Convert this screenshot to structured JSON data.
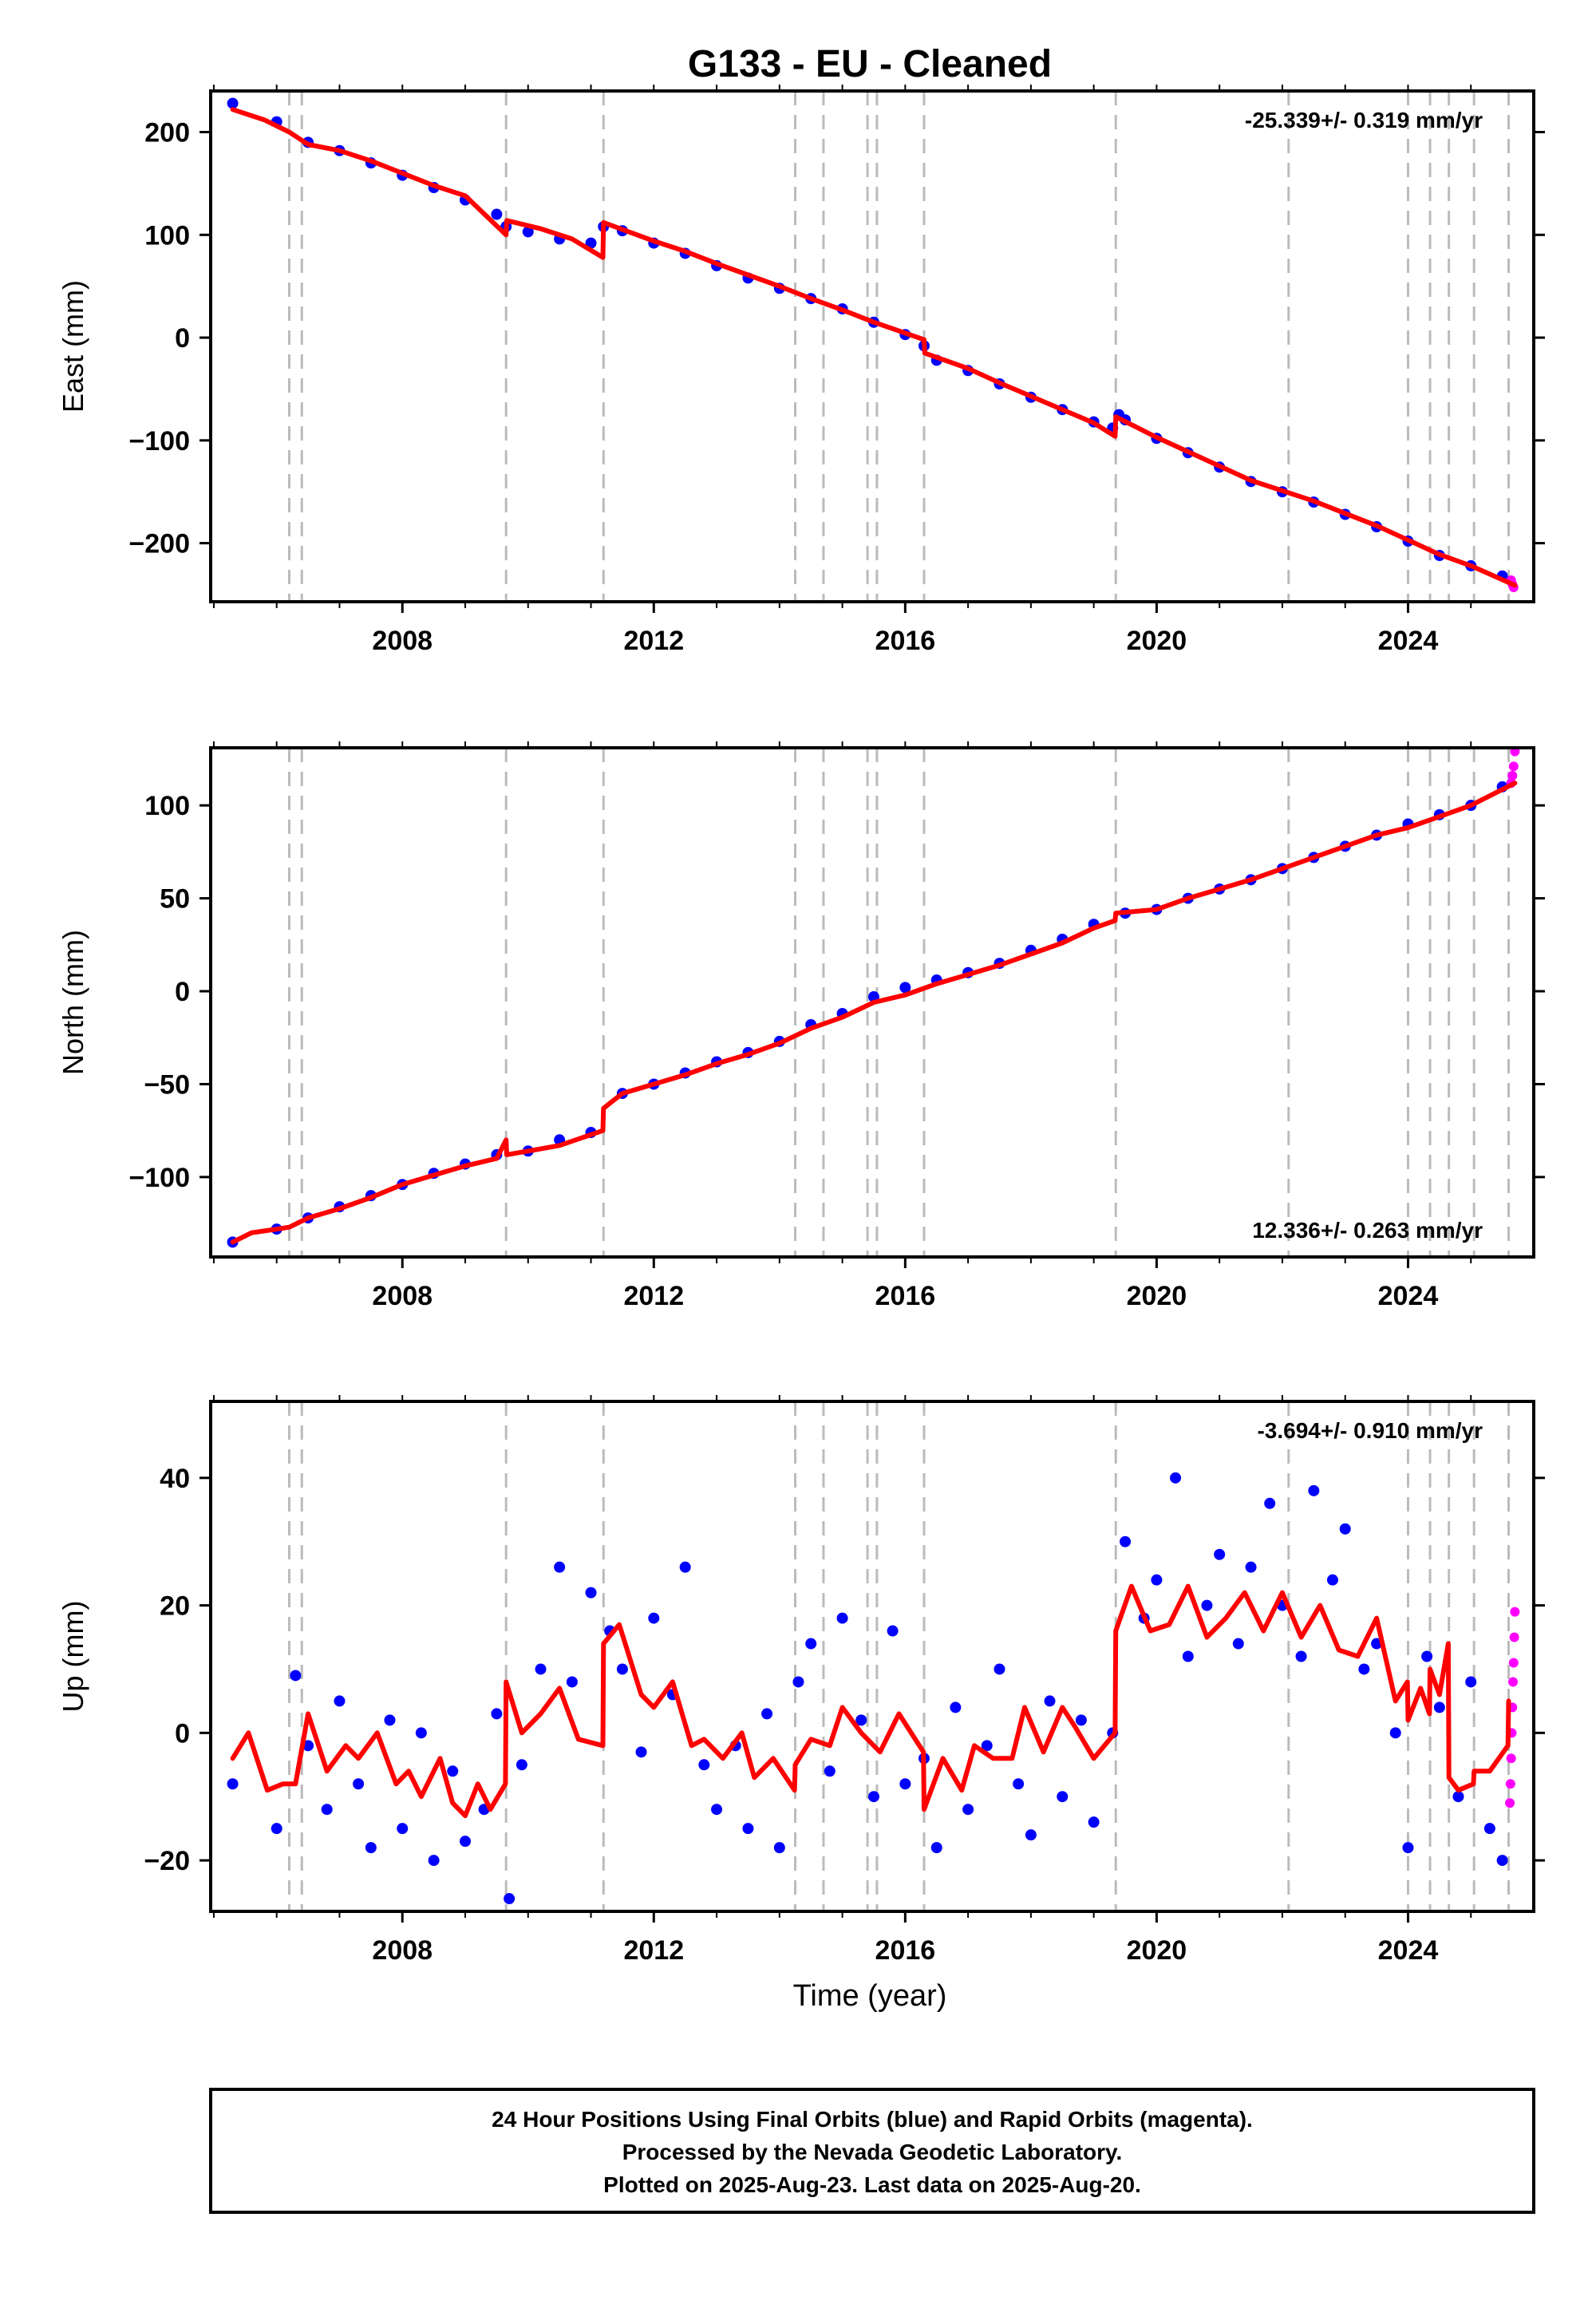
{
  "title": "G133  - EU - Cleaned",
  "xlabel": "Time (year)",
  "x_tick_labels": [
    "2008",
    "2012",
    "2016",
    "2020",
    "2024"
  ],
  "footer": {
    "line1": "24 Hour Positions Using Final Orbits (blue) and Rapid Orbits (magenta).",
    "line2": "Processed by the Nevada Geodetic Laboratory.",
    "line3": "Plotted on 2025-Aug-23. Last data on 2025-Aug-20."
  },
  "colors": {
    "final_orbits": "#0000ff",
    "rapid_orbits": "#ff00ff",
    "model": "#ff0000",
    "event_lines": "#bbbbbb"
  },
  "chart_data": [
    {
      "type": "scatter",
      "panel": "east",
      "ylabel": "East (mm)",
      "rate_label": "-25.339+/- 0.319 mm/yr",
      "rate_position": "top-right",
      "xlim": [
        2004.95,
        2026.0
      ],
      "ylim": [
        -257,
        240
      ],
      "y_ticks": [
        200,
        100,
        0,
        -100,
        -200
      ],
      "y_tick_labels": [
        "200",
        "100",
        "0",
        "−100",
        "−200"
      ],
      "grid": false,
      "event_lines_x": [
        2006.2,
        2006.4,
        2009.65,
        2011.2,
        2014.25,
        2014.7,
        2015.4,
        2015.55,
        2016.3,
        2019.35,
        2022.1,
        2024.0,
        2024.35,
        2024.65,
        2025.05,
        2025.6
      ],
      "series": [
        {
          "name": "Final Orbits",
          "color": "#0000ff",
          "kind": "points",
          "x": [
            2005.3,
            2006.0,
            2006.5,
            2007.0,
            2007.5,
            2008.0,
            2008.5,
            2009.0,
            2009.5,
            2009.65,
            2010.0,
            2010.5,
            2011.0,
            2011.2,
            2011.5,
            2012.0,
            2012.5,
            2013.0,
            2013.5,
            2014.0,
            2014.5,
            2015.0,
            2015.5,
            2016.0,
            2016.3,
            2016.5,
            2017.0,
            2017.5,
            2018.0,
            2018.5,
            2019.0,
            2019.3,
            2019.4,
            2019.5,
            2020.0,
            2020.5,
            2021.0,
            2021.5,
            2022.0,
            2022.5,
            2023.0,
            2023.5,
            2024.0,
            2024.5,
            2025.0,
            2025.5
          ],
          "y": [
            228,
            210,
            190,
            182,
            170,
            158,
            146,
            134,
            120,
            108,
            103,
            96,
            92,
            108,
            104,
            92,
            82,
            70,
            58,
            48,
            38,
            28,
            15,
            3,
            -8,
            -22,
            -32,
            -45,
            -58,
            -70,
            -82,
            -88,
            -75,
            -80,
            -98,
            -112,
            -126,
            -140,
            -150,
            -160,
            -172,
            -184,
            -198,
            -212,
            -222,
            -232
          ]
        },
        {
          "name": "Rapid Orbits",
          "color": "#ff00ff",
          "kind": "points",
          "x": [
            2025.64,
            2025.66,
            2025.68
          ],
          "y": [
            -236,
            -240,
            -243
          ]
        },
        {
          "name": "Model",
          "color": "#ff0000",
          "kind": "line",
          "x": [
            2005.3,
            2005.8,
            2006.2,
            2006.5,
            2007.0,
            2007.5,
            2008.0,
            2008.5,
            2009.0,
            2009.65,
            2009.66,
            2010.2,
            2010.7,
            2011.19,
            2011.2,
            2011.6,
            2012.0,
            2012.5,
            2013.0,
            2013.5,
            2014.0,
            2014.5,
            2015.0,
            2015.5,
            2016.3,
            2016.31,
            2017.0,
            2017.5,
            2018.0,
            2018.5,
            2019.0,
            2019.34,
            2019.35,
            2020.0,
            2020.5,
            2021.0,
            2021.5,
            2022.0,
            2022.5,
            2023.0,
            2023.5,
            2024.0,
            2024.5,
            2025.0,
            2025.7
          ],
          "y": [
            222,
            212,
            200,
            188,
            182,
            172,
            160,
            148,
            138,
            100,
            114,
            106,
            96,
            78,
            112,
            103,
            94,
            84,
            72,
            61,
            50,
            38,
            27,
            15,
            -2,
            -15,
            -30,
            -44,
            -57,
            -70,
            -83,
            -96,
            -77,
            -97,
            -111,
            -125,
            -139,
            -149,
            -159,
            -171,
            -183,
            -197,
            -211,
            -222,
            -241
          ]
        }
      ]
    },
    {
      "type": "scatter",
      "panel": "north",
      "ylabel": "North (mm)",
      "rate_label": "12.336+/- 0.263 mm/yr",
      "rate_position": "bottom-right",
      "xlim": [
        2004.95,
        2026.0
      ],
      "ylim": [
        -143,
        131
      ],
      "y_ticks": [
        100,
        50,
        0,
        -50,
        -100
      ],
      "y_tick_labels": [
        "100",
        "50",
        "0",
        "−50",
        "−100"
      ],
      "grid": false,
      "event_lines_x": [
        2006.2,
        2006.4,
        2009.65,
        2011.2,
        2014.25,
        2014.7,
        2015.4,
        2015.55,
        2016.3,
        2019.35,
        2022.1,
        2024.0,
        2024.35,
        2024.65,
        2025.05,
        2025.6
      ],
      "series": [
        {
          "name": "Final Orbits",
          "color": "#0000ff",
          "kind": "points",
          "x": [
            2005.3,
            2006.0,
            2006.5,
            2007.0,
            2007.5,
            2008.0,
            2008.5,
            2009.0,
            2009.5,
            2010.0,
            2010.5,
            2011.0,
            2011.5,
            2012.0,
            2012.5,
            2013.0,
            2013.5,
            2014.0,
            2014.5,
            2015.0,
            2015.5,
            2016.0,
            2016.5,
            2017.0,
            2017.5,
            2018.0,
            2018.5,
            2019.0,
            2019.5,
            2020.0,
            2020.5,
            2021.0,
            2021.5,
            2022.0,
            2022.5,
            2023.0,
            2023.5,
            2024.0,
            2024.5,
            2025.0,
            2025.5
          ],
          "y": [
            -135,
            -128,
            -122,
            -116,
            -110,
            -104,
            -98,
            -93,
            -88,
            -86,
            -80,
            -76,
            -55,
            -50,
            -44,
            -38,
            -33,
            -27,
            -18,
            -12,
            -3,
            2,
            6,
            10,
            15,
            22,
            28,
            36,
            42,
            44,
            50,
            55,
            60,
            66,
            72,
            78,
            84,
            90,
            95,
            100,
            110
          ]
        },
        {
          "name": "Rapid Orbits",
          "color": "#ff00ff",
          "kind": "points",
          "x": [
            2025.64,
            2025.66,
            2025.68,
            2025.7
          ],
          "y": [
            112,
            116,
            121,
            129
          ]
        },
        {
          "name": "Model",
          "color": "#ff0000",
          "kind": "line",
          "x": [
            2005.3,
            2005.6,
            2006.0,
            2006.2,
            2006.5,
            2007.0,
            2007.5,
            2008.0,
            2008.5,
            2009.0,
            2009.5,
            2009.65,
            2009.66,
            2010.0,
            2010.5,
            2011.19,
            2011.2,
            2011.5,
            2012.0,
            2012.5,
            2013.0,
            2013.5,
            2014.0,
            2014.5,
            2015.0,
            2015.5,
            2016.0,
            2016.5,
            2017.0,
            2017.5,
            2018.0,
            2018.5,
            2019.0,
            2019.34,
            2019.35,
            2020.0,
            2020.5,
            2021.0,
            2021.5,
            2022.0,
            2022.5,
            2023.0,
            2023.5,
            2024.0,
            2024.5,
            2025.0,
            2025.7
          ],
          "y": [
            -135,
            -130,
            -128,
            -127,
            -122,
            -117,
            -111,
            -104,
            -99,
            -94,
            -90,
            -80,
            -88,
            -86,
            -83,
            -75,
            -63,
            -55,
            -50,
            -45,
            -39,
            -34,
            -28,
            -20,
            -14,
            -6,
            -2,
            4,
            9,
            14,
            20,
            26,
            34,
            38,
            42,
            44,
            50,
            55,
            60,
            66,
            72,
            78,
            84,
            88,
            94,
            100,
            112
          ]
        }
      ]
    },
    {
      "type": "scatter",
      "panel": "up",
      "ylabel": "Up (mm)",
      "rate_label": "-3.694+/- 0.910 mm/yr",
      "rate_position": "top-right",
      "xlim": [
        2004.95,
        2026.0
      ],
      "ylim": [
        -28,
        52
      ],
      "y_ticks": [
        40,
        20,
        0,
        -20
      ],
      "y_tick_labels": [
        "40",
        "20",
        "0",
        "−20"
      ],
      "grid": false,
      "event_lines_x": [
        2006.2,
        2006.4,
        2009.65,
        2011.2,
        2014.25,
        2014.7,
        2015.4,
        2015.55,
        2016.3,
        2019.35,
        2022.1,
        2024.0,
        2024.35,
        2024.65,
        2025.05,
        2025.6
      ],
      "series": [
        {
          "name": "Final Orbits",
          "color": "#0000ff",
          "kind": "points",
          "x": [
            2005.3,
            2006.0,
            2006.3,
            2006.5,
            2006.8,
            2007.0,
            2007.3,
            2007.5,
            2007.8,
            2008.0,
            2008.3,
            2008.5,
            2008.8,
            2009.0,
            2009.3,
            2009.5,
            2009.7,
            2009.9,
            2010.2,
            2010.5,
            2010.7,
            2011.0,
            2011.3,
            2011.5,
            2011.8,
            2012.0,
            2012.3,
            2012.5,
            2012.8,
            2013.0,
            2013.3,
            2013.5,
            2013.8,
            2014.0,
            2014.3,
            2014.5,
            2014.8,
            2015.0,
            2015.3,
            2015.5,
            2015.8,
            2016.0,
            2016.3,
            2016.5,
            2016.8,
            2017.0,
            2017.3,
            2017.5,
            2017.8,
            2018.0,
            2018.3,
            2018.5,
            2018.8,
            2019.0,
            2019.3,
            2019.5,
            2019.8,
            2020.0,
            2020.3,
            2020.5,
            2020.8,
            2021.0,
            2021.3,
            2021.5,
            2021.8,
            2022.0,
            2022.3,
            2022.5,
            2022.8,
            2023.0,
            2023.3,
            2023.5,
            2023.8,
            2024.0,
            2024.3,
            2024.5,
            2024.8,
            2025.0,
            2025.3,
            2025.5
          ],
          "y": [
            -8,
            -15,
            9,
            -2,
            -12,
            5,
            -8,
            -18,
            2,
            -15,
            0,
            -20,
            -6,
            -17,
            -12,
            3,
            -26,
            -5,
            10,
            26,
            8,
            22,
            16,
            10,
            -3,
            18,
            6,
            26,
            -5,
            -12,
            -2,
            -15,
            3,
            -18,
            8,
            14,
            -6,
            18,
            2,
            -10,
            16,
            -8,
            -4,
            -18,
            4,
            -12,
            -2,
            10,
            -8,
            -16,
            5,
            -10,
            2,
            -14,
            0,
            30,
            18,
            24,
            40,
            12,
            20,
            28,
            14,
            26,
            36,
            20,
            12,
            38,
            24,
            32,
            10,
            14,
            0,
            -18,
            12,
            4,
            -10,
            8,
            -15,
            -20
          ]
        },
        {
          "name": "Rapid Orbits",
          "color": "#ff00ff",
          "kind": "points",
          "x": [
            2025.62,
            2025.63,
            2025.64,
            2025.65,
            2025.66,
            2025.67,
            2025.68,
            2025.69,
            2025.7
          ],
          "y": [
            -11,
            -8,
            -4,
            0,
            4,
            8,
            11,
            15,
            19
          ]
        },
        {
          "name": "Model",
          "color": "#ff0000",
          "kind": "line",
          "x": [
            2005.3,
            2005.55,
            2005.85,
            2006.1,
            2006.3,
            2006.5,
            2006.8,
            2007.1,
            2007.3,
            2007.6,
            2007.9,
            2008.1,
            2008.3,
            2008.6,
            2008.8,
            2009.0,
            2009.2,
            2009.4,
            2009.64,
            2009.65,
            2009.9,
            2010.2,
            2010.5,
            2010.8,
            2011.19,
            2011.2,
            2011.45,
            2011.8,
            2012.0,
            2012.3,
            2012.6,
            2012.8,
            2013.1,
            2013.4,
            2013.6,
            2013.9,
            2014.24,
            2014.25,
            2014.5,
            2014.8,
            2015.0,
            2015.3,
            2015.6,
            2015.9,
            2016.29,
            2016.3,
            2016.6,
            2016.9,
            2017.1,
            2017.4,
            2017.7,
            2017.9,
            2018.2,
            2018.5,
            2018.7,
            2019.0,
            2019.34,
            2019.35,
            2019.6,
            2019.9,
            2020.2,
            2020.5,
            2020.8,
            2021.1,
            2021.4,
            2021.7,
            2022.0,
            2022.3,
            2022.6,
            2022.9,
            2023.2,
            2023.5,
            2023.8,
            2023.99,
            2024.0,
            2024.2,
            2024.34,
            2024.35,
            2024.5,
            2024.64,
            2024.65,
            2024.8,
            2025.04,
            2025.05,
            2025.3,
            2025.59,
            2025.6
          ],
          "y": [
            -4,
            0,
            -9,
            -8,
            -8,
            3,
            -6,
            -2,
            -4,
            0,
            -8,
            -6,
            -10,
            -4,
            -11,
            -13,
            -8,
            -12,
            -8,
            8,
            0,
            3,
            7,
            -1,
            -2,
            14,
            17,
            6,
            4,
            8,
            -2,
            -1,
            -4,
            0,
            -7,
            -4,
            -9,
            -5,
            -1,
            -2,
            4,
            0,
            -3,
            3,
            -3,
            -12,
            -4,
            -9,
            -2,
            -4,
            -4,
            4,
            -3,
            4,
            1,
            -4,
            0,
            16,
            23,
            16,
            17,
            23,
            15,
            18,
            22,
            16,
            22,
            15,
            20,
            13,
            12,
            18,
            5,
            8,
            2,
            7,
            3,
            10,
            6,
            14,
            -7,
            -9,
            -8,
            -6,
            -6,
            -2,
            5
          ]
        }
      ]
    }
  ]
}
